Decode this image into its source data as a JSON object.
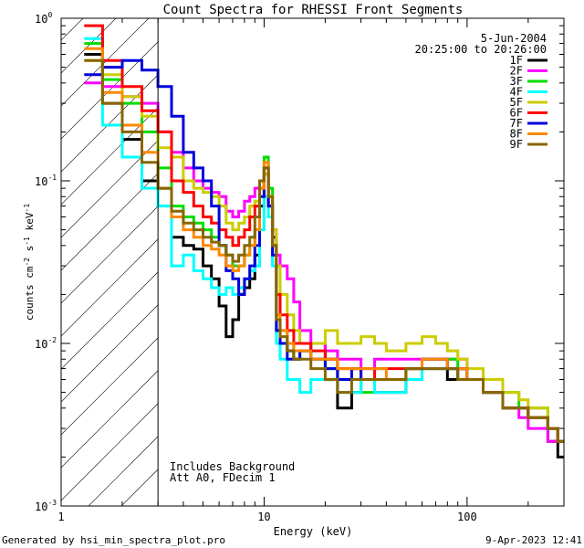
{
  "chart_data": {
    "type": "line",
    "title": "Count Spectra for RHESSI Front Segments",
    "xlabel": "Energy (keV)",
    "ylabel_parts": [
      "counts cm",
      "-2",
      " s",
      "-1",
      " keV",
      "-1"
    ],
    "x_scale": "log",
    "y_scale": "log",
    "xlim": [
      1,
      300
    ],
    "ylim": [
      0.001,
      1
    ],
    "x_ticks": [
      {
        "value": 1,
        "label": "1"
      },
      {
        "value": 10,
        "label": "10"
      },
      {
        "value": 100,
        "label": "100"
      }
    ],
    "y_ticks": [
      {
        "value": 1,
        "mant": "10",
        "exp": "0"
      },
      {
        "value": 0.1,
        "mant": "10",
        "exp": "-1"
      },
      {
        "value": 0.01,
        "mant": "10",
        "exp": "-2"
      },
      {
        "value": 0.001,
        "mant": "10",
        "exp": "-3"
      }
    ],
    "hatch_until_kev": 3,
    "date": "5-Jun-2004",
    "time_range": "20:25:00 to 20:26:00",
    "notes": [
      "Includes Background",
      "Att A0, FDecim 1"
    ],
    "series": [
      {
        "name": "1F",
        "color": "#000000",
        "x": [
          1.3,
          1.6,
          2,
          2.5,
          3,
          3.5,
          4,
          4.5,
          5,
          5.5,
          6,
          6.5,
          7,
          7.5,
          8,
          8.5,
          9,
          9.5,
          10,
          10.5,
          11,
          11.5,
          12,
          13,
          14,
          15,
          17,
          20,
          23,
          27,
          30,
          35,
          40,
          50,
          60,
          70,
          80,
          90,
          100,
          120,
          150,
          180,
          200,
          250,
          280
        ],
        "y": [
          0.6,
          0.3,
          0.18,
          0.1,
          0.09,
          0.045,
          0.04,
          0.038,
          0.03,
          0.025,
          0.017,
          0.011,
          0.014,
          0.02,
          0.022,
          0.025,
          0.035,
          0.07,
          0.11,
          0.08,
          0.045,
          0.012,
          0.01,
          0.009,
          0.008,
          0.009,
          0.01,
          0.008,
          0.004,
          0.005,
          0.006,
          0.005,
          0.005,
          0.006,
          0.007,
          0.007,
          0.006,
          0.007,
          0.006,
          0.005,
          0.004,
          0.004,
          0.0035,
          0.0025,
          0.002
        ]
      },
      {
        "name": "2F",
        "color": "#ff00ff",
        "x": [
          1.3,
          1.6,
          2,
          2.5,
          3,
          3.5,
          4,
          4.5,
          5,
          5.5,
          6,
          6.5,
          7,
          7.5,
          8,
          8.5,
          9,
          9.5,
          10,
          10.5,
          11,
          11.5,
          12,
          13,
          14,
          15,
          17,
          20,
          23,
          27,
          30,
          35,
          40,
          50,
          60,
          70,
          80,
          90,
          100,
          120,
          150,
          180,
          200,
          250,
          280
        ],
        "y": [
          0.4,
          0.38,
          0.33,
          0.3,
          0.2,
          0.15,
          0.12,
          0.1,
          0.09,
          0.085,
          0.08,
          0.065,
          0.06,
          0.065,
          0.075,
          0.08,
          0.09,
          0.1,
          0.11,
          0.07,
          0.05,
          0.035,
          0.03,
          0.025,
          0.018,
          0.012,
          0.01,
          0.009,
          0.008,
          0.008,
          0.007,
          0.008,
          0.008,
          0.008,
          0.008,
          0.008,
          0.008,
          0.008,
          0.006,
          0.005,
          0.004,
          0.0035,
          0.003,
          0.0025,
          0.0025
        ]
      },
      {
        "name": "3F",
        "color": "#00dd00",
        "x": [
          1.3,
          1.6,
          2,
          2.5,
          3,
          3.5,
          4,
          4.5,
          5,
          5.5,
          6,
          6.5,
          7,
          7.5,
          8,
          8.5,
          9,
          9.5,
          10,
          10.5,
          11,
          11.5,
          12,
          13,
          14,
          15,
          17,
          20,
          23,
          27,
          30,
          35,
          40,
          50,
          60,
          70,
          80,
          90,
          100,
          120,
          150,
          180,
          200,
          250,
          280
        ],
        "y": [
          0.7,
          0.42,
          0.3,
          0.2,
          0.12,
          0.07,
          0.06,
          0.055,
          0.05,
          0.045,
          0.04,
          0.035,
          0.03,
          0.03,
          0.035,
          0.04,
          0.05,
          0.1,
          0.14,
          0.09,
          0.04,
          0.015,
          0.012,
          0.01,
          0.008,
          0.009,
          0.008,
          0.007,
          0.006,
          0.006,
          0.005,
          0.006,
          0.006,
          0.007,
          0.008,
          0.008,
          0.008,
          0.007,
          0.006,
          0.005,
          0.005,
          0.004,
          0.004,
          0.003,
          0.0025
        ]
      },
      {
        "name": "4F",
        "color": "#00ffff",
        "x": [
          1.3,
          1.6,
          2,
          2.5,
          3,
          3.5,
          4,
          4.5,
          5,
          5.5,
          6,
          6.5,
          7,
          7.5,
          8,
          8.5,
          9,
          9.5,
          10,
          10.5,
          11,
          11.5,
          12,
          13,
          14,
          15,
          17,
          20,
          23,
          27,
          30,
          35,
          40,
          50,
          60,
          70,
          80,
          90,
          100,
          120,
          150,
          180,
          200,
          250,
          280
        ],
        "y": [
          0.75,
          0.22,
          0.14,
          0.09,
          0.07,
          0.03,
          0.035,
          0.028,
          0.025,
          0.022,
          0.02,
          0.022,
          0.02,
          0.022,
          0.025,
          0.028,
          0.03,
          0.05,
          0.08,
          0.06,
          0.03,
          0.01,
          0.008,
          0.006,
          0.006,
          0.005,
          0.006,
          0.006,
          0.005,
          0.005,
          0.006,
          0.005,
          0.005,
          0.006,
          0.007,
          0.007,
          0.007,
          0.007,
          0.006,
          0.005,
          0.004,
          0.004,
          0.0035,
          0.003,
          0.0025
        ]
      },
      {
        "name": "5F",
        "color": "#cccc00",
        "x": [
          1.3,
          1.6,
          2,
          2.5,
          3,
          3.5,
          4,
          4.5,
          5,
          5.5,
          6,
          6.5,
          7,
          7.5,
          8,
          8.5,
          9,
          9.5,
          10,
          10.5,
          11,
          11.5,
          12,
          13,
          14,
          15,
          17,
          20,
          23,
          27,
          30,
          35,
          40,
          50,
          60,
          70,
          80,
          90,
          100,
          120,
          150,
          180,
          200,
          250,
          280
        ],
        "y": [
          0.55,
          0.45,
          0.33,
          0.25,
          0.16,
          0.14,
          0.1,
          0.09,
          0.085,
          0.08,
          0.07,
          0.055,
          0.05,
          0.055,
          0.06,
          0.07,
          0.075,
          0.09,
          0.11,
          0.08,
          0.05,
          0.03,
          0.02,
          0.015,
          0.012,
          0.01,
          0.01,
          0.012,
          0.01,
          0.01,
          0.011,
          0.01,
          0.009,
          0.01,
          0.011,
          0.01,
          0.009,
          0.008,
          0.007,
          0.006,
          0.005,
          0.0045,
          0.004,
          0.003,
          0.0025
        ]
      },
      {
        "name": "6F",
        "color": "#ff0000",
        "x": [
          1.3,
          1.6,
          2,
          2.5,
          3,
          3.5,
          4,
          4.5,
          5,
          5.5,
          6,
          6.5,
          7,
          7.5,
          8,
          8.5,
          9,
          9.5,
          10,
          10.5,
          11,
          11.5,
          12,
          13,
          14,
          15,
          17,
          20,
          23,
          27,
          30,
          35,
          40,
          50,
          60,
          70,
          80,
          90,
          100,
          120,
          150,
          180,
          200,
          250,
          280
        ],
        "y": [
          0.9,
          0.55,
          0.38,
          0.27,
          0.2,
          0.1,
          0.085,
          0.07,
          0.06,
          0.055,
          0.05,
          0.045,
          0.04,
          0.045,
          0.05,
          0.06,
          0.07,
          0.09,
          0.12,
          0.07,
          0.04,
          0.02,
          0.015,
          0.012,
          0.01,
          0.01,
          0.009,
          0.008,
          0.007,
          0.007,
          0.006,
          0.007,
          0.007,
          0.007,
          0.008,
          0.008,
          0.007,
          0.007,
          0.006,
          0.005,
          0.004,
          0.004,
          0.0035,
          0.003,
          0.0025
        ]
      },
      {
        "name": "7F",
        "color": "#0000dd",
        "x": [
          1.3,
          1.6,
          2,
          2.5,
          3,
          3.5,
          4,
          4.5,
          5,
          5.5,
          6,
          6.5,
          7,
          7.5,
          8,
          8.5,
          9,
          9.5,
          10,
          10.5,
          11,
          11.5,
          12,
          13,
          14,
          15,
          17,
          20,
          23,
          27,
          30,
          35,
          40,
          50,
          60,
          70,
          80,
          90,
          100,
          120,
          150,
          180,
          200,
          250,
          280
        ],
        "y": [
          0.45,
          0.5,
          0.55,
          0.48,
          0.38,
          0.25,
          0.15,
          0.12,
          0.1,
          0.07,
          0.04,
          0.028,
          0.025,
          0.02,
          0.025,
          0.03,
          0.04,
          0.08,
          0.12,
          0.07,
          0.035,
          0.012,
          0.01,
          0.008,
          0.008,
          0.009,
          0.008,
          0.007,
          0.006,
          0.007,
          0.006,
          0.006,
          0.006,
          0.007,
          0.008,
          0.008,
          0.007,
          0.007,
          0.006,
          0.005,
          0.004,
          0.004,
          0.0035,
          0.003,
          0.0025
        ]
      },
      {
        "name": "8F",
        "color": "#ff8800",
        "x": [
          1.3,
          1.6,
          2,
          2.5,
          3,
          3.5,
          4,
          4.5,
          5,
          5.5,
          6,
          6.5,
          7,
          7.5,
          8,
          8.5,
          9,
          9.5,
          10,
          10.5,
          11,
          11.5,
          12,
          13,
          14,
          15,
          17,
          20,
          23,
          27,
          30,
          35,
          40,
          50,
          60,
          70,
          80,
          90,
          100,
          120,
          150,
          180,
          200,
          250,
          280
        ],
        "y": [
          0.65,
          0.35,
          0.22,
          0.15,
          0.09,
          0.06,
          0.05,
          0.045,
          0.04,
          0.038,
          0.035,
          0.03,
          0.028,
          0.03,
          0.035,
          0.04,
          0.05,
          0.09,
          0.13,
          0.08,
          0.04,
          0.015,
          0.012,
          0.01,
          0.009,
          0.009,
          0.008,
          0.008,
          0.007,
          0.007,
          0.007,
          0.007,
          0.006,
          0.007,
          0.008,
          0.008,
          0.007,
          0.007,
          0.006,
          0.005,
          0.004,
          0.004,
          0.0035,
          0.003,
          0.0025
        ]
      },
      {
        "name": "9F",
        "color": "#886600",
        "x": [
          1.3,
          1.6,
          2,
          2.5,
          3,
          3.5,
          4,
          4.5,
          5,
          5.5,
          6,
          6.5,
          7,
          7.5,
          8,
          8.5,
          9,
          9.5,
          10,
          10.5,
          11,
          11.5,
          12,
          13,
          14,
          15,
          17,
          20,
          23,
          27,
          30,
          35,
          40,
          50,
          60,
          70,
          80,
          90,
          100,
          120,
          150,
          180,
          200,
          250,
          280
        ],
        "y": [
          0.55,
          0.3,
          0.2,
          0.13,
          0.09,
          0.065,
          0.055,
          0.05,
          0.045,
          0.042,
          0.04,
          0.035,
          0.032,
          0.035,
          0.04,
          0.045,
          0.06,
          0.1,
          0.12,
          0.08,
          0.04,
          0.014,
          0.011,
          0.009,
          0.008,
          0.008,
          0.007,
          0.006,
          0.005,
          0.006,
          0.006,
          0.006,
          0.006,
          0.007,
          0.007,
          0.007,
          0.007,
          0.006,
          0.006,
          0.005,
          0.004,
          0.004,
          0.0035,
          0.003,
          0.0025
        ]
      }
    ]
  },
  "footer": {
    "left": "Generated by hsi_min_spectra_plot.pro",
    "right": "9-Apr-2023 12:41"
  }
}
